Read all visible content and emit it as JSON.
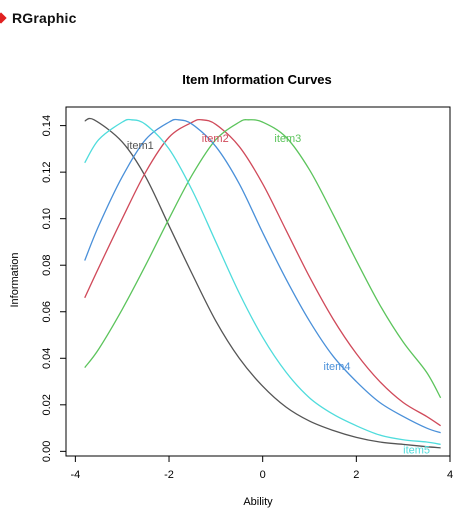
{
  "window": {
    "title": "RGraphic",
    "icon": "diamond-icon",
    "icon_color": "#e02020"
  },
  "chart_data": {
    "type": "line",
    "title": "Item Information Curves",
    "xlabel": "Ability",
    "ylabel": "Information",
    "xlim": [
      -4.2,
      4.0
    ],
    "ylim": [
      -0.002,
      0.148
    ],
    "x_ticks": [
      -4,
      -2,
      0,
      2,
      4
    ],
    "x_tick_labels": [
      "-4",
      "-2",
      "0",
      "2",
      "4"
    ],
    "y_ticks": [
      0.0,
      0.02,
      0.04,
      0.06,
      0.08,
      0.1,
      0.12,
      0.14
    ],
    "y_tick_labels": [
      "0.00",
      "0.02",
      "0.04",
      "0.06",
      "0.08",
      "0.10",
      "0.12",
      "0.14"
    ],
    "grid": false,
    "x_range": [
      -3.8,
      3.8
    ],
    "series": [
      {
        "name": "item1",
        "color": "#555555",
        "peak_x": -3.6,
        "peak_y": 0.1425,
        "points": [
          [
            -3.8,
            0.142
          ],
          [
            -3.6,
            0.1425
          ],
          [
            -3.0,
            0.133
          ],
          [
            -2.5,
            0.118
          ],
          [
            -2.0,
            0.097
          ],
          [
            -1.5,
            0.076
          ],
          [
            -1.0,
            0.056
          ],
          [
            -0.5,
            0.04
          ],
          [
            0.0,
            0.028
          ],
          [
            0.5,
            0.019
          ],
          [
            1.0,
            0.013
          ],
          [
            1.5,
            0.009
          ],
          [
            2.0,
            0.006
          ],
          [
            2.5,
            0.004
          ],
          [
            3.0,
            0.003
          ],
          [
            3.5,
            0.002
          ],
          [
            3.8,
            0.0015
          ]
        ],
        "label_x": -2.9,
        "label_y": 0.13
      },
      {
        "name": "item2",
        "color": "#d04a5a",
        "peak_x": -1.3,
        "peak_y": 0.1425,
        "points": [
          [
            -3.8,
            0.066
          ],
          [
            -3.5,
            0.079
          ],
          [
            -3.0,
            0.1
          ],
          [
            -2.5,
            0.12
          ],
          [
            -2.0,
            0.135
          ],
          [
            -1.5,
            0.1415
          ],
          [
            -1.3,
            0.1425
          ],
          [
            -1.0,
            0.1405
          ],
          [
            -0.5,
            0.131
          ],
          [
            0.0,
            0.115
          ],
          [
            0.5,
            0.095
          ],
          [
            1.0,
            0.075
          ],
          [
            1.5,
            0.057
          ],
          [
            2.0,
            0.042
          ],
          [
            2.5,
            0.03
          ],
          [
            3.0,
            0.021
          ],
          [
            3.5,
            0.015
          ],
          [
            3.8,
            0.011
          ]
        ],
        "label_x": -1.3,
        "label_y": 0.133
      },
      {
        "name": "item3",
        "color": "#5cc45c",
        "peak_x": -0.3,
        "peak_y": 0.1425,
        "points": [
          [
            -3.8,
            0.036
          ],
          [
            -3.5,
            0.044
          ],
          [
            -3.0,
            0.061
          ],
          [
            -2.5,
            0.08
          ],
          [
            -2.0,
            0.1
          ],
          [
            -1.5,
            0.119
          ],
          [
            -1.0,
            0.134
          ],
          [
            -0.5,
            0.1415
          ],
          [
            -0.3,
            0.1425
          ],
          [
            0.0,
            0.1415
          ],
          [
            0.5,
            0.135
          ],
          [
            1.0,
            0.121
          ],
          [
            1.5,
            0.102
          ],
          [
            2.0,
            0.082
          ],
          [
            2.5,
            0.063
          ],
          [
            3.0,
            0.047
          ],
          [
            3.5,
            0.034
          ],
          [
            3.8,
            0.023
          ]
        ],
        "label_x": 0.25,
        "label_y": 0.133
      },
      {
        "name": "item4",
        "color": "#4a90d9",
        "peak_x": -1.8,
        "peak_y": 0.1425,
        "points": [
          [
            -3.8,
            0.082
          ],
          [
            -3.5,
            0.097
          ],
          [
            -3.0,
            0.118
          ],
          [
            -2.5,
            0.134
          ],
          [
            -2.0,
            0.1415
          ],
          [
            -1.8,
            0.1425
          ],
          [
            -1.5,
            0.1405
          ],
          [
            -1.0,
            0.131
          ],
          [
            -0.5,
            0.115
          ],
          [
            0.0,
            0.094
          ],
          [
            0.5,
            0.074
          ],
          [
            1.0,
            0.056
          ],
          [
            1.5,
            0.041
          ],
          [
            2.0,
            0.03
          ],
          [
            2.5,
            0.021
          ],
          [
            3.0,
            0.015
          ],
          [
            3.5,
            0.01
          ],
          [
            3.8,
            0.008
          ]
        ],
        "label_x": 1.3,
        "label_y": 0.035
      },
      {
        "name": "item5",
        "color": "#4fdcdc",
        "peak_x": -2.8,
        "peak_y": 0.1425,
        "points": [
          [
            -3.8,
            0.124
          ],
          [
            -3.5,
            0.134
          ],
          [
            -3.0,
            0.1415
          ],
          [
            -2.8,
            0.1425
          ],
          [
            -2.5,
            0.1405
          ],
          [
            -2.0,
            0.13
          ],
          [
            -1.5,
            0.112
          ],
          [
            -1.0,
            0.09
          ],
          [
            -0.5,
            0.068
          ],
          [
            0.0,
            0.049
          ],
          [
            0.5,
            0.034
          ],
          [
            1.0,
            0.023
          ],
          [
            1.5,
            0.016
          ],
          [
            2.0,
            0.011
          ],
          [
            2.5,
            0.007
          ],
          [
            3.0,
            0.005
          ],
          [
            3.5,
            0.004
          ],
          [
            3.8,
            0.003
          ]
        ],
        "label_x": 3.0,
        "label_y": -0.001
      }
    ]
  }
}
